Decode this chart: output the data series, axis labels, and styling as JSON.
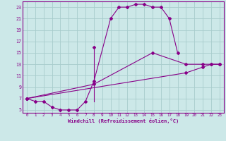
{
  "xlabel": "Windchill (Refroidissement éolien,°C)",
  "bg_color": "#cce8e8",
  "grid_color": "#a8cccc",
  "line_color": "#880088",
  "xlim": [
    -0.5,
    23.5
  ],
  "ylim": [
    4.5,
    24.0
  ],
  "xticks": [
    0,
    1,
    2,
    3,
    4,
    5,
    6,
    7,
    8,
    9,
    10,
    11,
    12,
    13,
    14,
    15,
    16,
    17,
    18,
    19,
    20,
    21,
    22,
    23
  ],
  "yticks": [
    5,
    7,
    9,
    11,
    13,
    15,
    17,
    19,
    21,
    23
  ],
  "curve_main": {
    "x": [
      0,
      1,
      2,
      3,
      4,
      5,
      6,
      7,
      8,
      10,
      11,
      12,
      13,
      14,
      15,
      16,
      17,
      18
    ],
    "y": [
      7,
      6.5,
      6.5,
      5.5,
      5.0,
      5.0,
      5.0,
      6.5,
      10.0,
      21.0,
      23.0,
      23.0,
      23.5,
      23.5,
      23.0,
      23.0,
      21.0,
      15.0
    ]
  },
  "spike": {
    "x": [
      8,
      8
    ],
    "y": [
      6.5,
      16.0
    ]
  },
  "curve_mid": {
    "x": [
      0,
      8,
      15,
      19,
      21,
      22,
      23
    ],
    "y": [
      7,
      9.5,
      15.0,
      13.0,
      13.0,
      13.0,
      13.0
    ]
  },
  "curve_low": {
    "x": [
      0,
      19,
      21,
      22,
      23
    ],
    "y": [
      7,
      11.5,
      12.5,
      13.0,
      13.0
    ]
  }
}
